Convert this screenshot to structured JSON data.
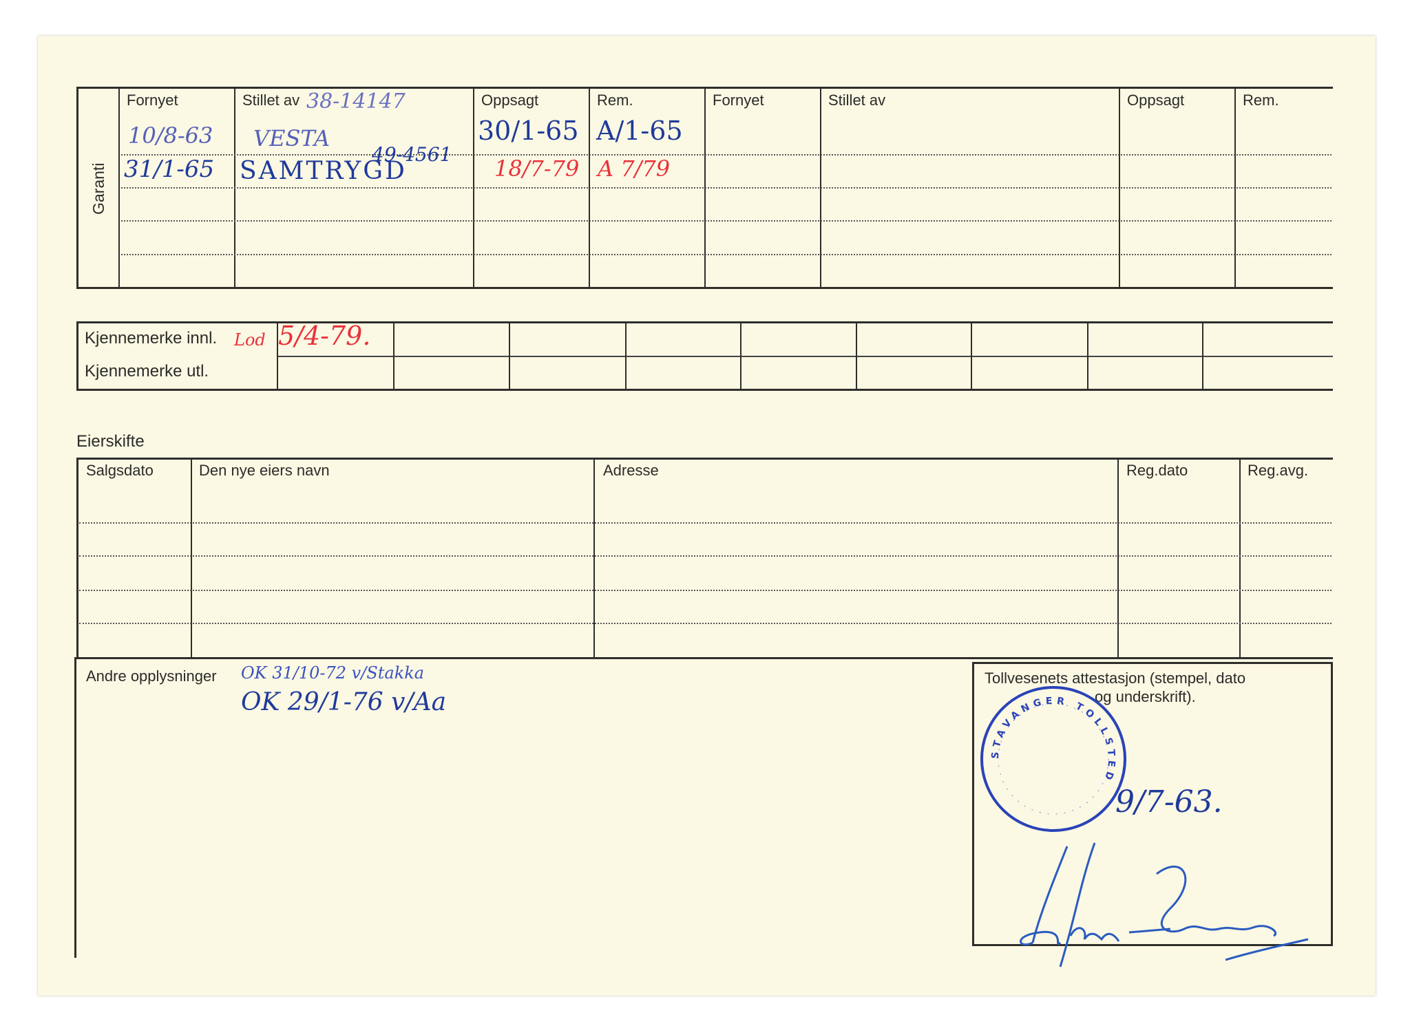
{
  "garanti": {
    "side_label": "Garanti",
    "headers": [
      "Fornyet",
      "Stillet av",
      "Oppsagt",
      "Rem.",
      "Fornyet",
      "Stillet av",
      "Oppsagt",
      "Rem."
    ],
    "handwritten": {
      "stillet_av_header_note": "38-14147",
      "row1": {
        "fornyet": "10/8-63",
        "stillet_av": "VESTA",
        "oppsagt": "30/1-65",
        "rem": "A/1-65"
      },
      "row2": {
        "fornyet": "31/1-65",
        "stillet_av": "SAMTRYGD",
        "stillet_av_note": "49-4561",
        "oppsagt": "18/7-79",
        "rem": "A 7/79"
      }
    }
  },
  "kjennemerke": {
    "innl_label": "Kjennemerke innl.",
    "utl_label": "Kjennemerke utl.",
    "innl_value": "5/4-79.",
    "innl_prefix": "Lod"
  },
  "eierskifte": {
    "title": "Eierskifte",
    "headers": [
      "Salgsdato",
      "Den nye eiers navn",
      "Adresse",
      "Reg.dato",
      "Reg.avg."
    ]
  },
  "andre": {
    "label": "Andre opplysninger",
    "line1": "OK 31/10-72 v/Stakka",
    "line2": "OK 29/1-76 v/Aa"
  },
  "tollvesen": {
    "label_line1": "Tollvesenets attestasjon (stempel, dato",
    "label_line2": "og underskrift).",
    "date": "9/7-63.",
    "signature": "Jan Pedersen",
    "stamp_text": "STAVANGER TOLLSTED"
  },
  "colors": {
    "ink_blue": "#2a43a8",
    "ink_red": "#e8323a",
    "paper": "#fbf8e4",
    "print": "#2e2e2a"
  }
}
